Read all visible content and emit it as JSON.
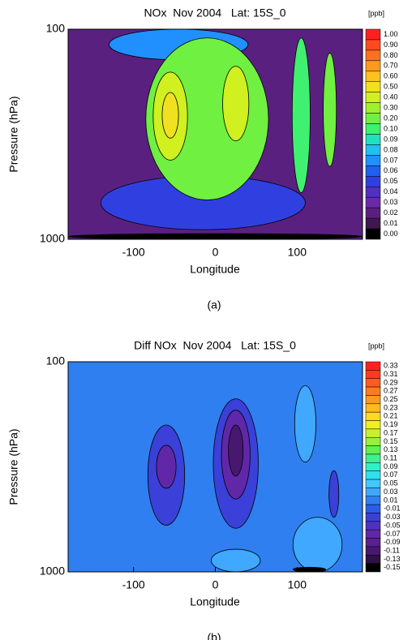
{
  "charts": [
    {
      "chart_data": {
        "type": "contour",
        "title": "NOx  Nov 2004   Lat: 15S_0",
        "colorbar_unit": "[ppb]",
        "x_label": "Longitude",
        "y_label": "Pressure (hPa)",
        "caption": "(a)",
        "xlim": [
          -180,
          180
        ],
        "xticks": [
          -100,
          0,
          100
        ],
        "ylim": [
          1000,
          100
        ],
        "yticks": [
          100,
          1000
        ],
        "y_log": true,
        "background_value": 0.02,
        "levels": [
          {
            "value": 1,
            "label": "1.00"
          },
          {
            "value": 0.9,
            "label": "0.90"
          },
          {
            "value": 0.8,
            "label": "0.80"
          },
          {
            "value": 0.7,
            "label": "0.70"
          },
          {
            "value": 0.6,
            "label": "0.60"
          },
          {
            "value": 0.5,
            "label": "0.50"
          },
          {
            "value": 0.4,
            "label": "0.40"
          },
          {
            "value": 0.3,
            "label": "0.30"
          },
          {
            "value": 0.2,
            "label": "0.20"
          },
          {
            "value": 0.1,
            "label": "0.10"
          },
          0.09,
          0.08,
          0.07,
          0.06,
          0.05,
          0.04,
          0.03,
          0.02,
          0.01,
          {
            "value": 0,
            "label": "0.00"
          }
        ],
        "level_colors": [
          "#ff2020",
          "#ff4a20",
          "#ff7020",
          "#ff9a20",
          "#ffc020",
          "#f0e020",
          "#d0f020",
          "#a0f030",
          "#70f040",
          "#40f070",
          "#20e0c0",
          "#20c0f0",
          "#2090ff",
          "#2060f0",
          "#3040e0",
          "#5030c0",
          "#6a2aa8",
          "#5a2080",
          "#401850",
          "#000000"
        ],
        "regions": [
          {
            "x": -15,
            "width": 250,
            "p": [
              500,
              900
            ],
            "value": 0.05
          },
          {
            "x": -45,
            "width": 170,
            "p": [
              100,
              140
            ],
            "value": 0.07
          },
          {
            "x": -10,
            "width": 150,
            "p": [
              110,
              650
            ],
            "value": 0.2
          },
          {
            "x": 105,
            "width": 22,
            "p": [
              110,
              600
            ],
            "value": 0.1
          },
          {
            "x": 140,
            "width": 16,
            "p": [
              130,
              450
            ],
            "value": 0.2
          },
          {
            "x": -55,
            "width": 42,
            "p": [
              160,
              420
            ],
            "value": 0.4
          },
          {
            "x": -55,
            "width": 20,
            "p": [
              200,
              330
            ],
            "value": 0.5
          },
          {
            "x": 25,
            "width": 32,
            "p": [
              150,
              340
            ],
            "value": 0.4
          },
          {
            "x": 0,
            "width": 360,
            "p": [
              940,
              1000
            ],
            "value": 0
          }
        ]
      }
    },
    {
      "chart_data": {
        "type": "contour",
        "title": "Diff NOx  Nov 2004   Lat: 15S_0",
        "colorbar_unit": "[ppb]",
        "x_label": "Longitude",
        "y_label": "Pressure (hPa)",
        "caption": "(b)",
        "xlim": [
          -180,
          180
        ],
        "xticks": [
          -100,
          0,
          100
        ],
        "ylim": [
          1000,
          100
        ],
        "yticks": [
          100,
          1000
        ],
        "y_log": true,
        "background_value": 0.01,
        "levels": [
          0.33,
          0.31,
          0.29,
          0.27,
          0.25,
          0.23,
          0.21,
          0.19,
          0.17,
          0.15,
          0.13,
          0.11,
          0.09,
          0.07,
          0.05,
          0.03,
          0.01,
          -0.01,
          -0.03,
          -0.05,
          -0.07,
          -0.09,
          -0.11,
          -0.13,
          -0.15
        ],
        "level_colors": [
          "#ff2020",
          "#ff3a20",
          "#ff5a20",
          "#ff7a20",
          "#ff9a20",
          "#ffba20",
          "#ffda20",
          "#f0f020",
          "#c8f030",
          "#98f040",
          "#60f050",
          "#40f090",
          "#30f0c8",
          "#30e0f0",
          "#40c8ff",
          "#40a8ff",
          "#2f7ff0",
          "#2a5ee8",
          "#3a40d8",
          "#5030c0",
          "#6028a8",
          "#5a2090",
          "#481870",
          "#301048",
          "#000000"
        ],
        "regions": [
          {
            "x": -60,
            "width": 45,
            "p": [
              200,
              600
            ],
            "value": -0.03
          },
          {
            "x": -60,
            "width": 24,
            "p": [
              250,
              400
            ],
            "value": -0.07
          },
          {
            "x": 25,
            "width": 55,
            "p": [
              150,
              620
            ],
            "value": -0.03
          },
          {
            "x": 25,
            "width": 35,
            "p": [
              170,
              450
            ],
            "value": -0.07
          },
          {
            "x": 25,
            "width": 18,
            "p": [
              200,
              350
            ],
            "value": -0.11
          },
          {
            "x": 110,
            "width": 26,
            "p": [
              130,
              300
            ],
            "value": 0.03
          },
          {
            "x": 145,
            "width": 12,
            "p": [
              330,
              550
            ],
            "value": -0.03
          },
          {
            "x": 25,
            "width": 60,
            "p": [
              780,
              1000
            ],
            "value": 0.03
          },
          {
            "x": 125,
            "width": 60,
            "p": [
              550,
              1000
            ],
            "value": 0.03
          },
          {
            "x": 115,
            "width": 40,
            "p": [
              950,
              1000
            ],
            "value": -0.15
          }
        ]
      }
    }
  ]
}
